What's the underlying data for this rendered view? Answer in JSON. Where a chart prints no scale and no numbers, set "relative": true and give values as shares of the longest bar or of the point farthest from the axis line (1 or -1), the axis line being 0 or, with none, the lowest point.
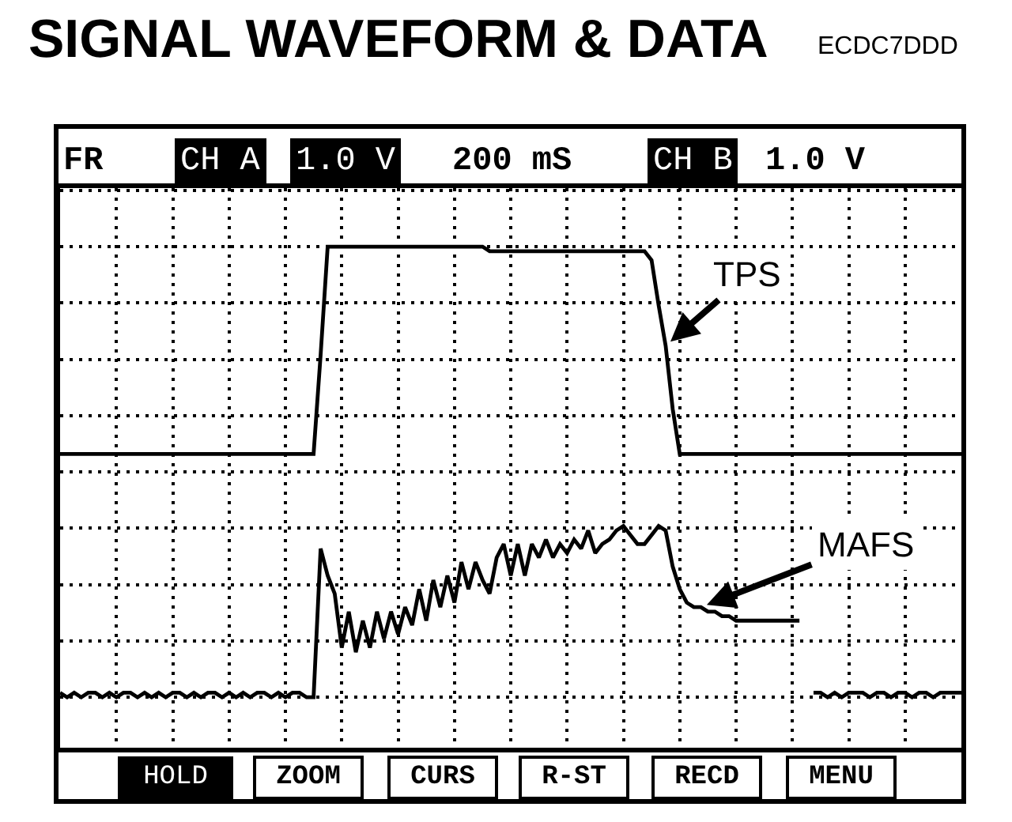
{
  "chart_data": {
    "type": "line",
    "title": "SIGNAL WAVEFORM & DATA",
    "annotations": [
      "ECDC7DDD",
      "FR",
      "CH A",
      "1.0 V",
      "200 mS",
      "CH B",
      "1.0 V",
      "HOLD",
      "ZOOM",
      "CURS",
      "R-ST",
      "RECD",
      "MENU"
    ],
    "categories": [
      null,
      null,
      null,
      null,
      null,
      null,
      null,
      null,
      null,
      null,
      null,
      null,
      null,
      null,
      null,
      null,
      null,
      null,
      null,
      null,
      null,
      null,
      null,
      null,
      null,
      null,
      null,
      null,
      null,
      null,
      null,
      null,
      null,
      null,
      null,
      null,
      null,
      null,
      null,
      null,
      null,
      null,
      null,
      null,
      null,
      null,
      null,
      null,
      null,
      null,
      null,
      null,
      null,
      null,
      null,
      null,
      null,
      null,
      null,
      null,
      null,
      null,
      null,
      null,
      null,
      null,
      null,
      null,
      null,
      null,
      null,
      null,
      null,
      null,
      null,
      null,
      null,
      null,
      null,
      null,
      null,
      null,
      null,
      null,
      null,
      null,
      null,
      null,
      null,
      null,
      null,
      null,
      null,
      null,
      null,
      null,
      null,
      null,
      null,
      null,
      null,
      null,
      null,
      null,
      null,
      null,
      null,
      null,
      null,
      null,
      null,
      null,
      null,
      null,
      null,
      null,
      null,
      null,
      null,
      null,
      null,
      null,
      null,
      null,
      null,
      null,
      null,
      null,
      null
    ],
    "relative": true,
    "series": [
      {
        "name": "TPS",
        "color": "#000000",
        "values": [
          0.54,
          0.54,
          0.54,
          0.54,
          0.54,
          0.54,
          0.54,
          0.54,
          0.54,
          0.54,
          0.54,
          0.54,
          0.54,
          0.54,
          0.54,
          0.54,
          0.54,
          0.54,
          0.54,
          0.54,
          0.54,
          0.54,
          0.54,
          0.54,
          0.54,
          0.54,
          0.54,
          0.54,
          0.54,
          0.54,
          0.54,
          0.54,
          0.54,
          0.54,
          0.54,
          0.54,
          0.54,
          0.76,
          1.0,
          1.0,
          1.0,
          1.0,
          1.0,
          1.0,
          1.0,
          1.0,
          1.0,
          1.0,
          1.0,
          1.0,
          1.0,
          1.0,
          1.0,
          1.0,
          1.0,
          1.0,
          1.0,
          1.0,
          1.0,
          1.0,
          1.0,
          0.99,
          0.99,
          0.99,
          0.99,
          0.99,
          0.99,
          0.99,
          0.99,
          0.99,
          0.99,
          0.99,
          0.99,
          0.99,
          0.99,
          0.99,
          0.99,
          0.99,
          0.99,
          0.99,
          0.99,
          0.99,
          0.99,
          0.99,
          0.97,
          0.87,
          0.78,
          0.64,
          0.54,
          0.54,
          0.54,
          0.54,
          0.54,
          0.54,
          0.54,
          0.54,
          0.54,
          0.54,
          0.54,
          0.54,
          0.54,
          0.54,
          0.54,
          0.54,
          0.54,
          0.54,
          0.54,
          0.54,
          0.54,
          0.54,
          0.54,
          0.54,
          0.54,
          0.54,
          0.54,
          0.54,
          0.54,
          0.54,
          0.54,
          0.54,
          0.54,
          0.54,
          0.54,
          0.54,
          0.54,
          0.54,
          0.54,
          0.54,
          0.54
        ]
      },
      {
        "name": "MAFS",
        "color": "#000000",
        "values": [
          0.01,
          0,
          0.01,
          0,
          0.01,
          0.01,
          0,
          0.01,
          0,
          0.01,
          0.01,
          0,
          0.01,
          0,
          0.01,
          0,
          0.01,
          0.01,
          0,
          0.01,
          0,
          0.01,
          0.01,
          0,
          0.01,
          0,
          0.01,
          0,
          0.01,
          0.01,
          0,
          0.01,
          0,
          0.01,
          0.01,
          0,
          0,
          0.33,
          0.27,
          0.23,
          0.11,
          0.19,
          0.1,
          0.17,
          0.11,
          0.19,
          0.13,
          0.19,
          0.14,
          0.2,
          0.16,
          0.24,
          0.17,
          0.26,
          0.2,
          0.27,
          0.21,
          0.3,
          0.24,
          0.3,
          0.26,
          0.23,
          0.31,
          0.34,
          0.27,
          0.34,
          0.27,
          0.34,
          0.31,
          0.35,
          0.31,
          0.34,
          0.32,
          0.35,
          0.33,
          0.37,
          0.32,
          0.34,
          0.35,
          0.37,
          0.38,
          0.36,
          0.34,
          0.34,
          0.36,
          0.38,
          0.37,
          0.29,
          0.24,
          0.21,
          0.2,
          0.2,
          0.19,
          0.19,
          0.18,
          0.18,
          0.17,
          0.17,
          0.17,
          0.17,
          0.17,
          0.17,
          0.17,
          0.17,
          0.17,
          0.17,
          null,
          0.01,
          0.01,
          0,
          0.01,
          0,
          0.01,
          0.01,
          0.01,
          0,
          0.01,
          0.01,
          0,
          0.01,
          0.01,
          0,
          0.01,
          0.01,
          0,
          0.01,
          0.01,
          0.01,
          0.01
        ]
      }
    ],
    "grid": true,
    "legend": false,
    "tick_labels": false,
    "line_style": "solid"
  }
}
